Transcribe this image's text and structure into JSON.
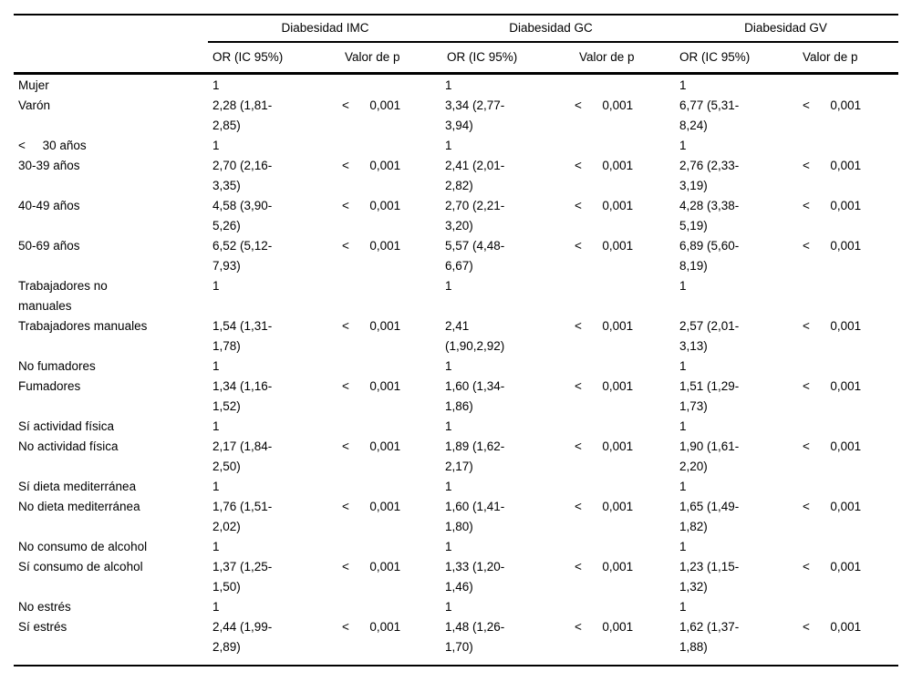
{
  "page": {
    "background_color": "#ffffff",
    "text_color": "#000000",
    "rule_color": "#000000"
  },
  "table": {
    "groups": [
      {
        "label": "Diabesidad IMC"
      },
      {
        "label": "Diabesidad GC"
      },
      {
        "label": "Diabesidad GV"
      }
    ],
    "subheaders": {
      "or": "OR (IC 95%)",
      "p": "Valor de p"
    },
    "rows": [
      {
        "label": "Mujer",
        "or1": "1",
        "p1": "",
        "or2": "1",
        "p2": "",
        "or3": "1",
        "p3": ""
      },
      {
        "label": "Varón",
        "or1": "2,28 (1,81-\n2,85)",
        "p1": "<      0,001",
        "or2": "3,34 (2,77-\n3,94)",
        "p2": "<      0,001",
        "or3": "6,77 (5,31-\n8,24)",
        "p3": "<      0,001"
      },
      {
        "label": "<     30 años",
        "or1": "1",
        "p1": "",
        "or2": "1",
        "p2": "",
        "or3": "1",
        "p3": ""
      },
      {
        "label": "30-39 años",
        "or1": "2,70 (2,16-\n3,35)",
        "p1": "<      0,001",
        "or2": "2,41 (2,01-\n2,82)",
        "p2": "<      0,001",
        "or3": "2,76 (2,33-\n3,19)",
        "p3": "<      0,001"
      },
      {
        "label": "40-49 años",
        "or1": "4,58 (3,90-\n5,26)",
        "p1": "<      0,001",
        "or2": "2,70 (2,21-\n3,20)",
        "p2": "<      0,001",
        "or3": "4,28 (3,38-\n5,19)",
        "p3": "<      0,001"
      },
      {
        "label": "50-69 años",
        "or1": "6,52 (5,12-\n7,93)",
        "p1": "<      0,001",
        "or2": "5,57 (4,48-\n6,67)",
        "p2": "<      0,001",
        "or3": "6,89 (5,60-\n8,19)",
        "p3": "<      0,001"
      },
      {
        "label": "Trabajadores no\nmanuales",
        "or1": "1",
        "p1": "",
        "or2": "1",
        "p2": "",
        "or3": "1",
        "p3": ""
      },
      {
        "label": "Trabajadores manuales",
        "or1": "1,54 (1,31-\n1,78)",
        "p1": "<      0,001",
        "or2": "2,41\n(1,90,2,92)",
        "p2": "<      0,001",
        "or3": "2,57 (2,01-\n3,13)",
        "p3": "<      0,001"
      },
      {
        "label": "No fumadores",
        "or1": "1",
        "p1": "",
        "or2": "1",
        "p2": "",
        "or3": "1",
        "p3": ""
      },
      {
        "label": "Fumadores",
        "or1": "1,34 (1,16-\n1,52)",
        "p1": "<      0,001",
        "or2": "1,60 (1,34-\n1,86)",
        "p2": "<      0,001",
        "or3": "1,51 (1,29-\n1,73)",
        "p3": "<      0,001"
      },
      {
        "label": "Sí actividad física",
        "or1": "1",
        "p1": "",
        "or2": "1",
        "p2": "",
        "or3": "1",
        "p3": ""
      },
      {
        "label": "No actividad física",
        "or1": "2,17 (1,84-\n2,50)",
        "p1": "<      0,001",
        "or2": "1,89 (1,62-\n2,17)",
        "p2": "<      0,001",
        "or3": "1,90 (1,61-\n2,20)",
        "p3": "<      0,001"
      },
      {
        "label": "Sí dieta mediterránea",
        "or1": "1",
        "p1": "",
        "or2": "1",
        "p2": "",
        "or3": "1",
        "p3": ""
      },
      {
        "label": "No dieta mediterránea",
        "or1": "1,76 (1,51-\n2,02)",
        "p1": "<      0,001",
        "or2": "1,60 (1,41-\n1,80)",
        "p2": "<      0,001",
        "or3": "1,65 (1,49-\n1,82)",
        "p3": "<      0,001"
      },
      {
        "label": "No consumo de alcohol",
        "or1": "1",
        "p1": "",
        "or2": "1",
        "p2": "",
        "or3": "1",
        "p3": ""
      },
      {
        "label": "Sí consumo de alcohol",
        "or1": "1,37 (1,25-\n1,50)",
        "p1": "<      0,001",
        "or2": "1,33 (1,20-\n1,46)",
        "p2": "<      0,001",
        "or3": "1,23 (1,15-\n1,32)",
        "p3": "<      0,001"
      },
      {
        "label": "No estrés",
        "or1": "1",
        "p1": "",
        "or2": "1",
        "p2": "",
        "or3": "1",
        "p3": ""
      },
      {
        "label": "Sí estrés",
        "or1": "2,44 (1,99-\n2,89)",
        "p1": "<      0,001",
        "or2": "1,48 (1,26-\n1,70)",
        "p2": "<      0,001",
        "or3": "1,62 (1,37-\n1,88)",
        "p3": "<      0,001"
      }
    ]
  }
}
